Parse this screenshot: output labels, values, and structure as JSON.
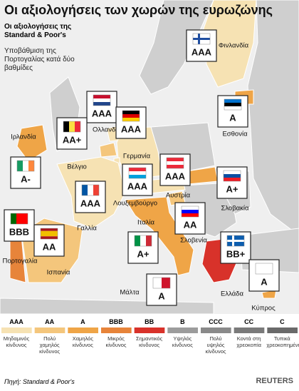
{
  "header": {
    "title": "Οι αξιολογήσεις των χωρών της ευρωζώνης",
    "subtitle": "Οι αξιολογήσεις της Standard & Poor's",
    "note": "Υποβάθμιση της Πορτογαλίας κατά δύο βαθμίδες"
  },
  "countries": [
    {
      "name": "Φινλανδία",
      "rating": "AAA"
    },
    {
      "name": "Ολλανδία",
      "rating": "AAA"
    },
    {
      "name": "Βέλγιο",
      "rating": "AA+"
    },
    {
      "name": "Γερμανία",
      "rating": "AAA"
    },
    {
      "name": "Εσθονία",
      "rating": "A"
    },
    {
      "name": "Ιρλανδία",
      "rating": "A-"
    },
    {
      "name": "Λουξεμβούργο",
      "rating": "AAA"
    },
    {
      "name": "Αυστρία",
      "rating": "AAA"
    },
    {
      "name": "Γαλλία",
      "rating": "AAA"
    },
    {
      "name": "Σλοβακία",
      "rating": "A+"
    },
    {
      "name": "Σλοβενία",
      "rating": "AA"
    },
    {
      "name": "Ιταλία",
      "rating": "A+"
    },
    {
      "name": "Πορτογαλία",
      "rating": "BBB"
    },
    {
      "name": "Ισπανία",
      "rating": "AA"
    },
    {
      "name": "Ελλάδα",
      "rating": "BB+"
    },
    {
      "name": "Μάλτα",
      "rating": "A"
    },
    {
      "name": "Κύπρος",
      "rating": "A"
    }
  ],
  "legend": [
    {
      "rating": "AAA",
      "label": "Μηδαμινός κίνδυνος",
      "color": "#f6e2b3"
    },
    {
      "rating": "AA",
      "label": "Πολύ χαμηλός κίνδυνος",
      "color": "#f4c67c"
    },
    {
      "rating": "A",
      "label": "Χαμηλός κίνδυνος",
      "color": "#efa547"
    },
    {
      "rating": "BBB",
      "label": "Μικρός κίνδυνος",
      "color": "#e7843a"
    },
    {
      "rating": "BB",
      "label": "Σημαντικός κίνδυνος",
      "color": "#d8322a"
    },
    {
      "rating": "B",
      "label": "Υψηλός κίνδυνος",
      "color": "#9c9c9c"
    },
    {
      "rating": "CCC",
      "label": "Πολύ υψηλός κίνδυνος",
      "color": "#8a8a8a"
    },
    {
      "rating": "CC",
      "label": "Κοντά στη χρεοκοπία",
      "color": "#7a7a7a"
    },
    {
      "rating": "C",
      "label": "Τυπικά χρεοκοπημένη",
      "color": "#6a6a6a"
    }
  ],
  "footer": {
    "source": "Πηγή: Standard & Poor's",
    "logo": "REUTERS"
  }
}
